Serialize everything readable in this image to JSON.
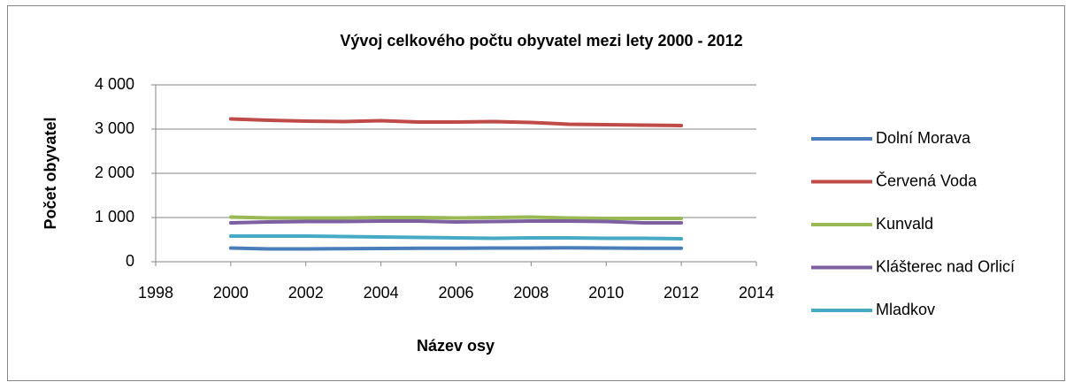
{
  "chart_data": {
    "type": "line",
    "title": "Vývoj celkového počtu obyvatel mezi lety 2000 - 2012",
    "xlabel": "Název osy",
    "ylabel": "Počet obyvatel",
    "x": [
      2000,
      2001,
      2002,
      2003,
      2004,
      2005,
      2006,
      2007,
      2008,
      2009,
      2010,
      2011,
      2012
    ],
    "series": [
      {
        "name": "Dolní Morava",
        "color": "#4a7ebb",
        "values": [
          310,
          290,
          290,
          295,
          300,
          305,
          305,
          310,
          310,
          315,
          310,
          305,
          305
        ]
      },
      {
        "name": "Červená Voda",
        "color": "#be4b48",
        "values": [
          3230,
          3200,
          3180,
          3170,
          3190,
          3160,
          3160,
          3170,
          3150,
          3110,
          3100,
          3090,
          3080
        ]
      },
      {
        "name": "Kunvald",
        "color": "#98b954",
        "values": [
          1010,
          990,
          990,
          990,
          1000,
          1000,
          990,
          1000,
          1010,
          990,
          980,
          980,
          980
        ]
      },
      {
        "name": "Klášterec nad Orlicí",
        "color": "#7d60a0",
        "values": [
          880,
          900,
          910,
          910,
          920,
          920,
          900,
          910,
          920,
          920,
          910,
          880,
          880
        ]
      },
      {
        "name": "Mladkov",
        "color": "#46aac5",
        "values": [
          580,
          580,
          580,
          570,
          560,
          550,
          540,
          530,
          540,
          540,
          530,
          530,
          520
        ]
      }
    ],
    "xlim": [
      1998,
      2014
    ],
    "xticks": [
      1998,
      2000,
      2002,
      2004,
      2006,
      2008,
      2010,
      2012,
      2014
    ],
    "ylim": [
      0,
      4000
    ],
    "yticks": [
      0,
      {
        "value": 1000,
        "label": "1 000"
      },
      {
        "value": 2000,
        "label": "2 000"
      },
      {
        "value": 3000,
        "label": "3 000"
      },
      {
        "value": 4000,
        "label": "4 000"
      }
    ],
    "grid": true,
    "legend": "right"
  }
}
